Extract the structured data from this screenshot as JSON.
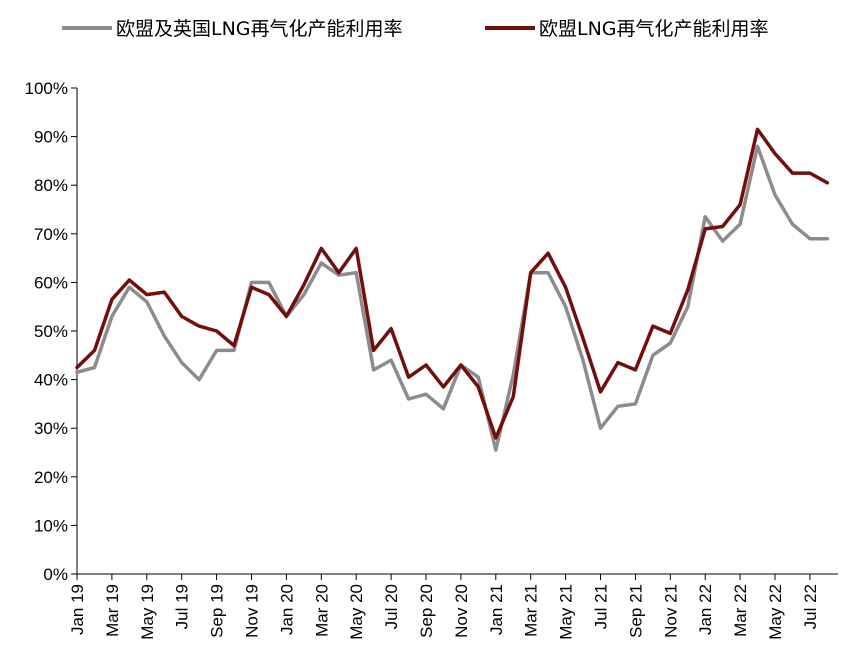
{
  "chart_data": {
    "type": "line",
    "title": "",
    "xlabel": "",
    "ylabel": "",
    "ylim": [
      0,
      100
    ],
    "y_ticks": [
      "0%",
      "10%",
      "20%",
      "30%",
      "40%",
      "50%",
      "60%",
      "70%",
      "80%",
      "90%",
      "100%"
    ],
    "x_tick_labels": [
      "Jan 19",
      "Mar 19",
      "May 19",
      "Jul 19",
      "Sep 19",
      "Nov 19",
      "Jan 20",
      "Mar 20",
      "May 20",
      "Jul 20",
      "Sep 20",
      "Nov 20",
      "Jan 21",
      "Mar 21",
      "May 21",
      "Jul 21",
      "Sep 21",
      "Nov 21",
      "Jan 22",
      "Mar 22",
      "May 22",
      "Jul 22"
    ],
    "categories": [
      "Jan 19",
      "Feb 19",
      "Mar 19",
      "Apr 19",
      "May 19",
      "Jun 19",
      "Jul 19",
      "Aug 19",
      "Sep 19",
      "Oct 19",
      "Nov 19",
      "Dec 19",
      "Jan 20",
      "Feb 20",
      "Mar 20",
      "Apr 20",
      "May 20",
      "Jun 20",
      "Jul 20",
      "Aug 20",
      "Sep 20",
      "Oct 20",
      "Nov 20",
      "Dec 20",
      "Jan 21",
      "Feb 21",
      "Mar 21",
      "Apr 21",
      "May 21",
      "Jun 21",
      "Jul 21",
      "Aug 21",
      "Sep 21",
      "Oct 21",
      "Nov 21",
      "Dec 21",
      "Jan 22",
      "Feb 22",
      "Mar 22",
      "Apr 22",
      "May 22",
      "Jun 22",
      "Jul 22",
      "Aug 22"
    ],
    "series": [
      {
        "name": "欧盟及英国LNG再气化产能利用率",
        "color": "#8c8c8c",
        "values": [
          41.5,
          42.5,
          53,
          59,
          56,
          49,
          43.5,
          40,
          46,
          46,
          60,
          60,
          53,
          57.5,
          64,
          61.5,
          62,
          42,
          44,
          36,
          37,
          34,
          43,
          40.5,
          25.5,
          41,
          62,
          62,
          55,
          44,
          30,
          34.5,
          35,
          45,
          47.5,
          55,
          73.5,
          68.5,
          72,
          88,
          78,
          72,
          69,
          69
        ]
      },
      {
        "name": "欧盟LNG再气化产能利用率",
        "color": "#730e0e",
        "values": [
          42.5,
          46,
          56.5,
          60.5,
          57.5,
          58,
          53,
          51,
          50,
          47,
          59,
          57.5,
          53,
          59.5,
          67,
          62,
          67,
          46,
          50.5,
          40.5,
          43,
          38.5,
          43,
          38.5,
          28,
          36.5,
          62,
          66,
          59,
          48.5,
          37.5,
          43.5,
          42,
          51,
          49.5,
          58.5,
          71,
          71.5,
          76,
          91.5,
          86.5,
          82.5,
          82.5,
          80.5
        ]
      }
    ],
    "legend_position": "top",
    "grid": false
  }
}
